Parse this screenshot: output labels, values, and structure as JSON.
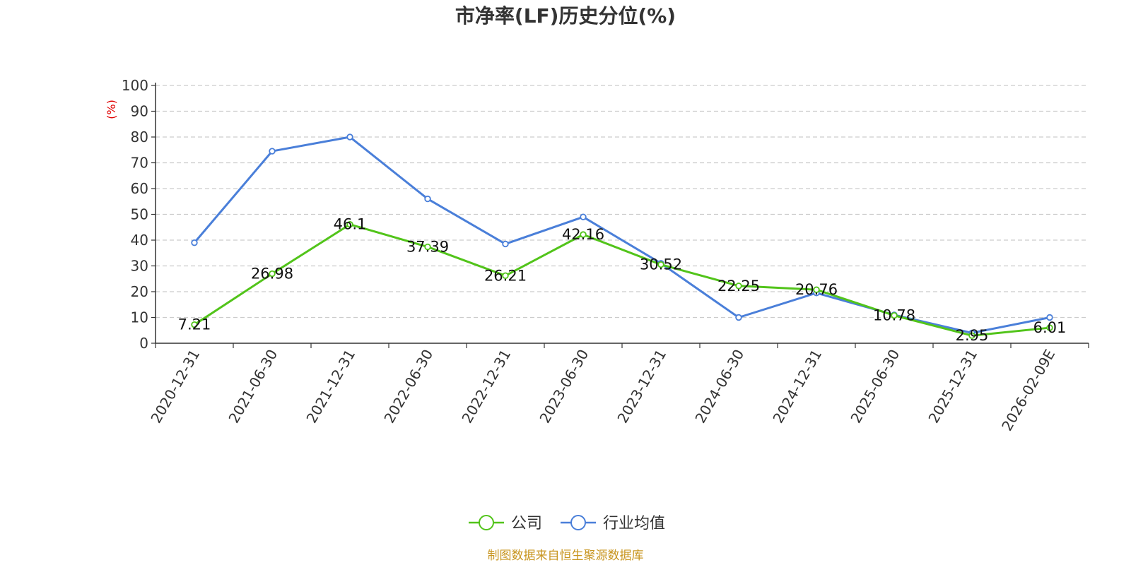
{
  "chart_data": {
    "type": "line",
    "title": "市净率(LF)历史分位(%)",
    "ylabel": "(%)",
    "xlabel": "",
    "ylim": [
      0,
      100
    ],
    "yticks": [
      0,
      10,
      20,
      30,
      40,
      50,
      60,
      70,
      80,
      90,
      100
    ],
    "grid": true,
    "categories": [
      "2020-12-31",
      "2021-06-30",
      "2021-12-31",
      "2022-06-30",
      "2022-12-31",
      "2023-06-30",
      "2023-12-31",
      "2024-06-30",
      "2024-12-31",
      "2025-06-30",
      "2025-12-31",
      "2026-02-09E"
    ],
    "series": [
      {
        "name": "公司",
        "color": "#52c41a",
        "values": [
          7.21,
          26.98,
          46.1,
          37.39,
          26.21,
          42.16,
          30.52,
          22.25,
          20.76,
          10.78,
          2.95,
          6.01
        ],
        "labels": [
          "7.21",
          "26.98",
          "46.1",
          "37.39",
          "26.21",
          "42.16",
          "30.52",
          "22.25",
          "20.76",
          "10.78",
          "2.95",
          "6.01"
        ]
      },
      {
        "name": "行业均值",
        "color": "#4a7fd9",
        "values": [
          39,
          74.5,
          80,
          56,
          38.5,
          49,
          31,
          10,
          19.5,
          11,
          4,
          10
        ]
      }
    ],
    "legend_position": "bottom-center",
    "source": "制图数据来自恒生聚源数据库"
  }
}
